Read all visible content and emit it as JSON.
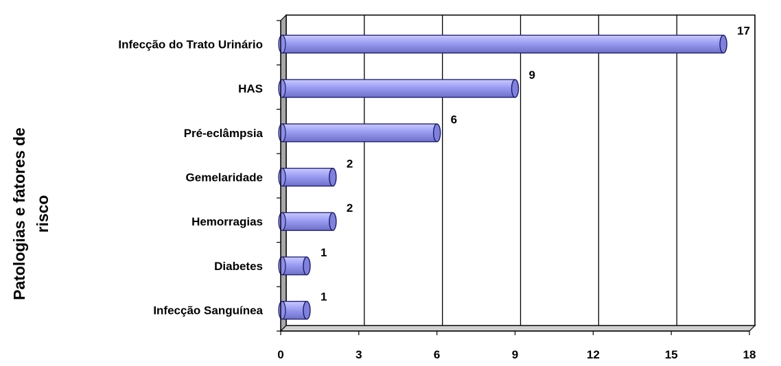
{
  "chart_data": {
    "type": "bar",
    "orientation": "horizontal",
    "categories": [
      "Infecção do Trato Urinário",
      "HAS",
      "Pré-eclâmpsia",
      "Gemelaridade",
      "Hemorragias",
      "Diabetes",
      "Infecção Sanguínea"
    ],
    "values": [
      17,
      9,
      6,
      2,
      2,
      1,
      1
    ],
    "data_labels": [
      "17",
      "9",
      "6",
      "2",
      "2",
      "1",
      "1"
    ],
    "ylabel_lines": [
      "Patologias e fatores de",
      "risco"
    ],
    "xlim": [
      0,
      18
    ],
    "xticks": [
      0,
      3,
      6,
      9,
      12,
      15,
      18
    ],
    "xtick_labels": [
      "0",
      "3",
      "6",
      "9",
      "12",
      "15",
      "18"
    ],
    "grid": "vertical",
    "legend": "none",
    "bar_color": "#9a9cf2",
    "bar_edge_color": "#1a1a6e"
  }
}
